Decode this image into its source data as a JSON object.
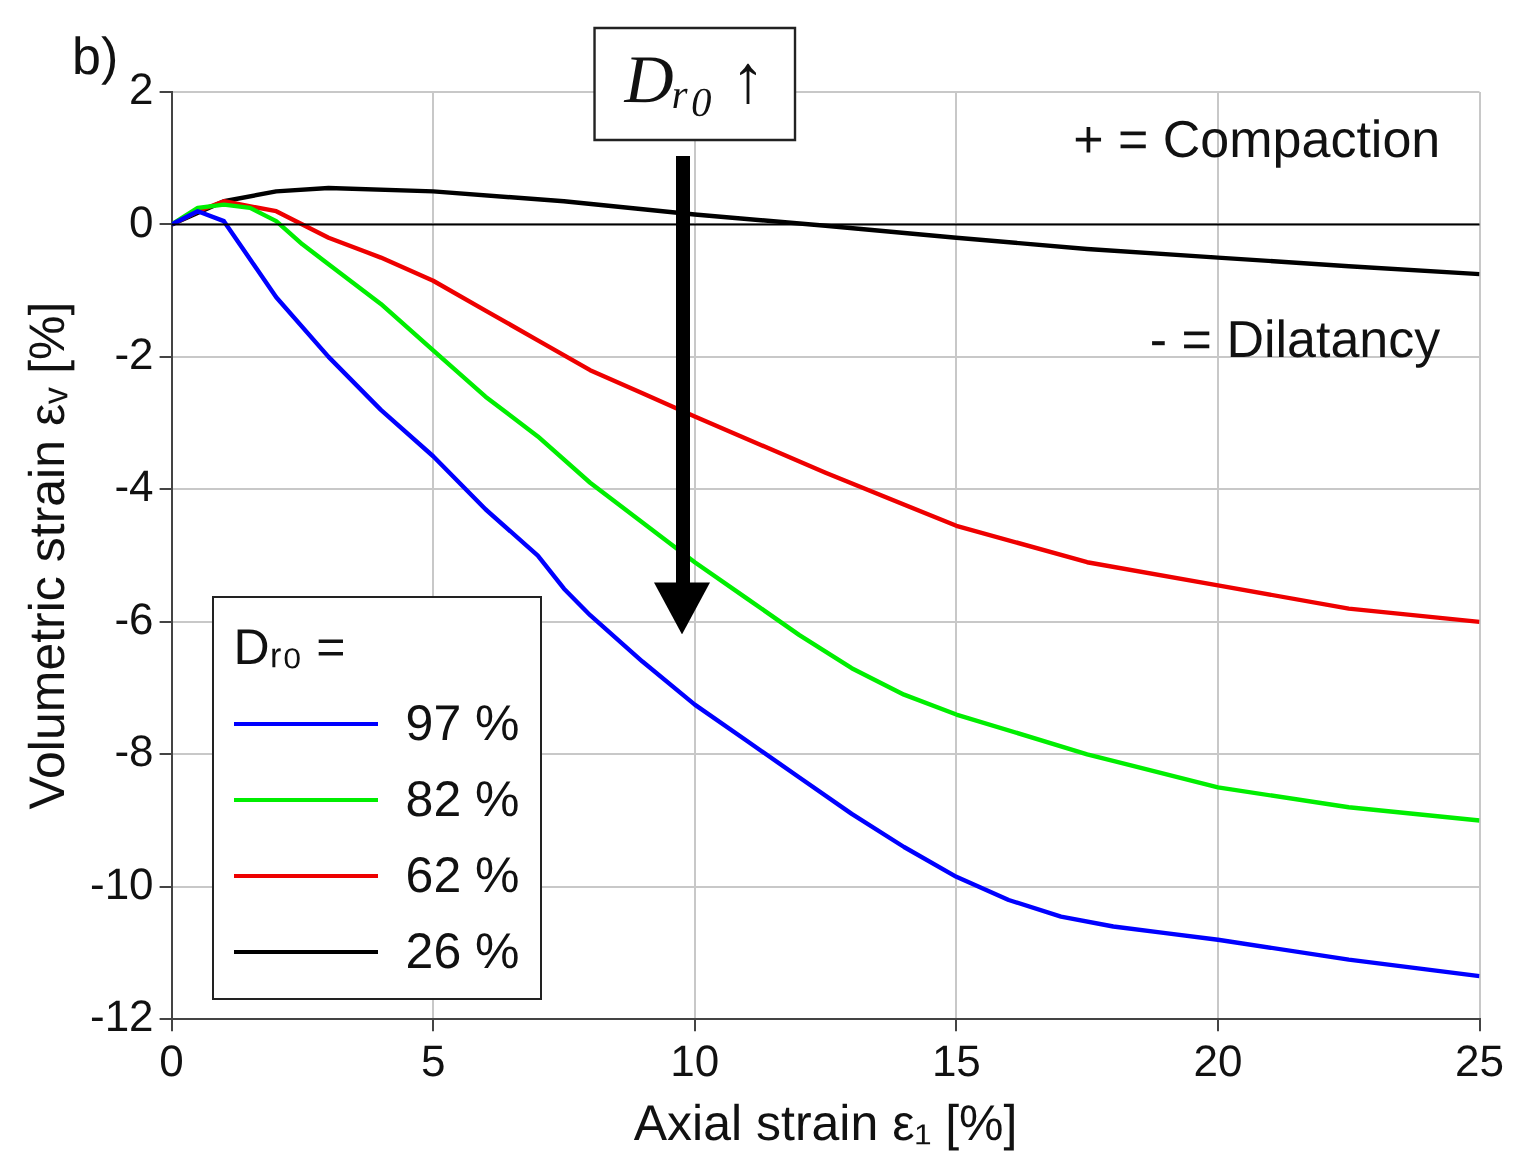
{
  "chart_data": {
    "type": "line",
    "xlabel": "Axial strain ε₁ [%]",
    "ylabel": "Volumetric strain εᵥ [%]",
    "legend_title": "Dᵣ₀ =",
    "legend": "bottom left",
    "grid": true,
    "marker": "none",
    "line_style": "solid",
    "xlim": [
      0,
      25
    ],
    "xticks": [
      0,
      5,
      10,
      15,
      20,
      25
    ],
    "ylim": [
      -12,
      2
    ],
    "yticks": [
      -12,
      -10,
      -8,
      -6,
      -4,
      -2,
      0,
      2
    ],
    "ref_lines": [
      {
        "axis": "y",
        "value": 0,
        "color": "#000000"
      }
    ],
    "annotations": [
      "b)",
      "Dᵣ₀ ↑",
      "+ = Compaction",
      "- = Dilatancy"
    ],
    "series": [
      {
        "name": "97 %",
        "color": "#0000ff",
        "x": [
          0,
          0.5,
          1,
          2,
          3,
          4,
          5,
          6,
          7,
          7.5,
          8,
          9,
          10,
          11,
          12,
          13,
          14,
          15,
          16,
          17,
          18,
          19,
          20,
          22.5,
          25
        ],
        "values": [
          0,
          0.2,
          0.05,
          -1.1,
          -2.0,
          -2.8,
          -3.5,
          -4.3,
          -5.0,
          -5.5,
          -5.9,
          -6.6,
          -7.25,
          -7.8,
          -8.35,
          -8.9,
          -9.4,
          -9.85,
          -10.2,
          -10.45,
          -10.6,
          -10.7,
          -10.8,
          -11.1,
          -11.35
        ]
      },
      {
        "name": "82 %",
        "color": "#00ee00",
        "x": [
          0,
          0.5,
          1,
          1.5,
          2,
          2.5,
          3,
          4,
          5,
          6,
          7,
          8,
          9,
          10,
          11,
          12,
          13,
          14,
          15,
          17.5,
          20,
          22.5,
          25
        ],
        "values": [
          0,
          0.25,
          0.3,
          0.25,
          0.05,
          -0.3,
          -0.6,
          -1.2,
          -1.9,
          -2.6,
          -3.2,
          -3.9,
          -4.5,
          -5.1,
          -5.65,
          -6.2,
          -6.7,
          -7.1,
          -7.4,
          -8.0,
          -8.5,
          -8.8,
          -9.0
        ]
      },
      {
        "name": "62 %",
        "color": "#ee0000",
        "x": [
          0,
          0.5,
          1,
          2,
          2.5,
          3,
          4,
          5,
          6,
          7,
          8,
          9,
          10,
          12.5,
          15,
          17.5,
          20,
          22.5,
          25
        ],
        "values": [
          0,
          0.2,
          0.35,
          0.2,
          0,
          -0.2,
          -0.5,
          -0.85,
          -1.3,
          -1.75,
          -2.2,
          -2.55,
          -2.9,
          -3.75,
          -4.55,
          -5.1,
          -5.45,
          -5.8,
          -6.0
        ]
      },
      {
        "name": "26 %",
        "color": "#000000",
        "x": [
          0,
          1,
          2,
          3,
          5,
          7.5,
          10,
          12.5,
          15,
          17.5,
          20,
          22.5,
          25
        ],
        "values": [
          0,
          0.35,
          0.5,
          0.55,
          0.5,
          0.35,
          0.15,
          -0.02,
          -0.2,
          -0.37,
          -0.5,
          -0.63,
          -0.75
        ]
      }
    ]
  }
}
